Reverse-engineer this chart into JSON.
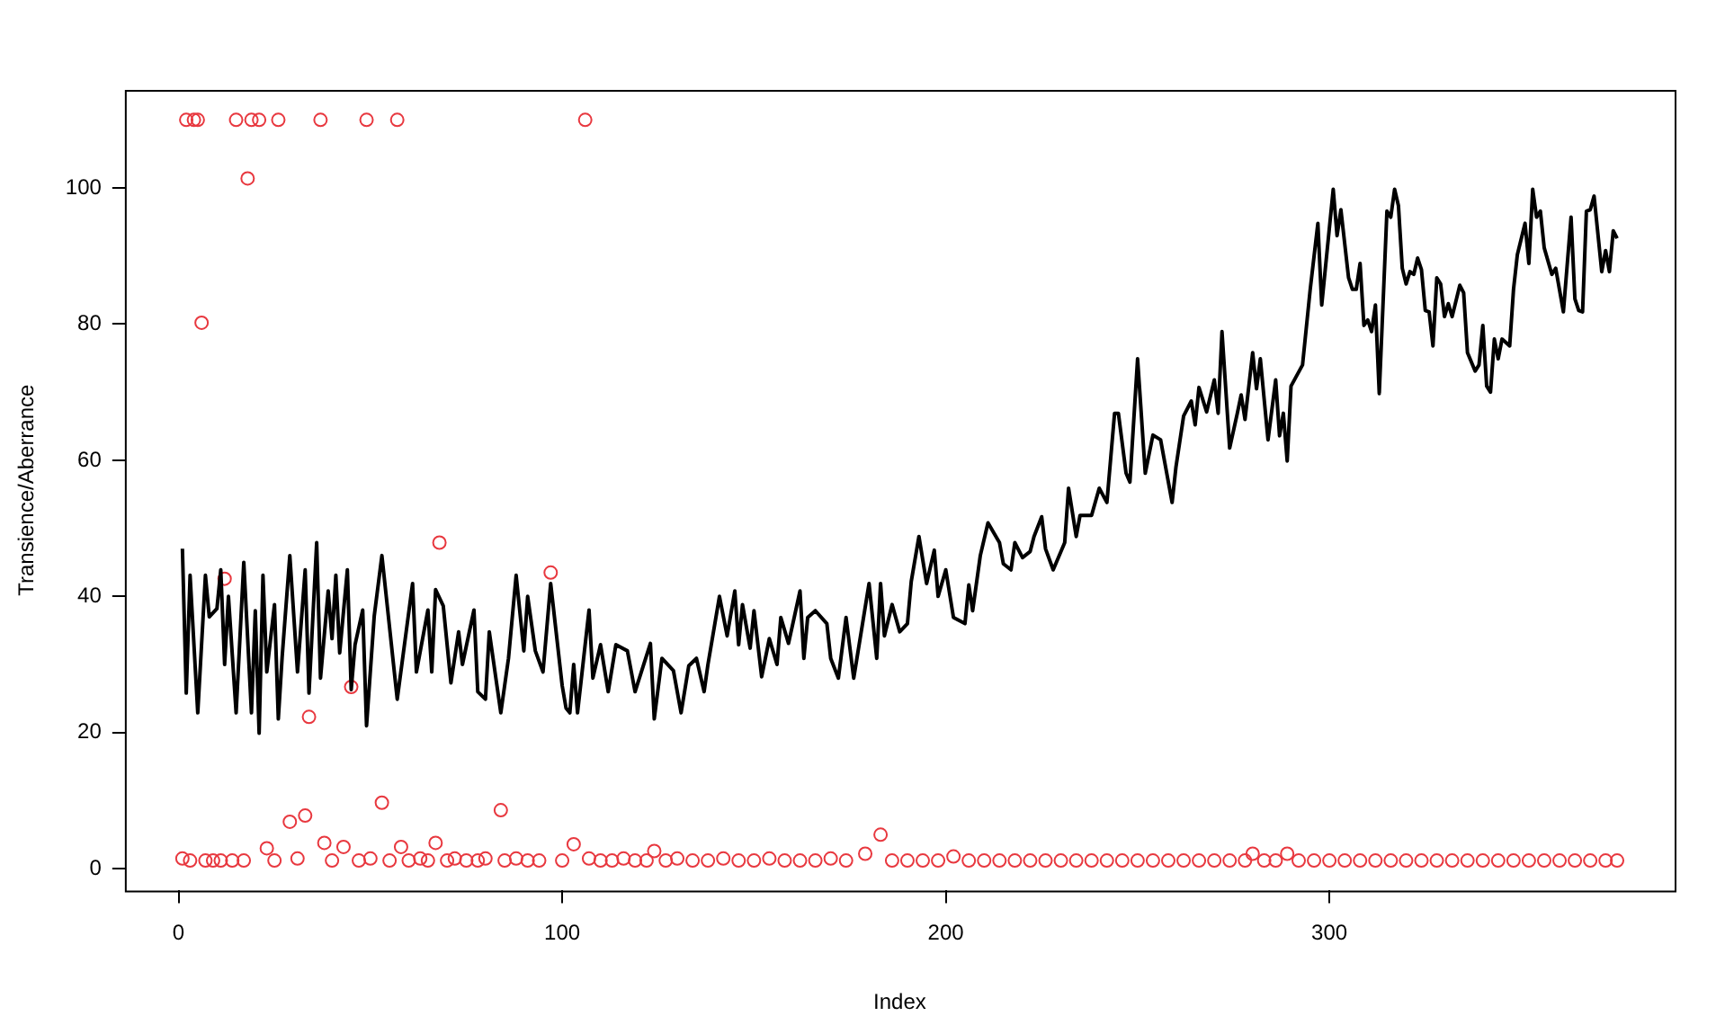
{
  "chart_data": {
    "type": "line",
    "xlabel": "Index",
    "ylabel": "Transience/Aberrance",
    "xlim": [
      -14,
      390
    ],
    "ylim": [
      -3.2,
      114.4
    ],
    "xticks": [
      0,
      100,
      200,
      300
    ],
    "yticks": [
      0,
      20,
      40,
      60,
      80,
      100
    ],
    "series": [
      {
        "color": "#000000",
        "marker": "none",
        "line_style": "solid",
        "x": [
          1,
          2,
          3,
          5,
          7,
          8,
          10,
          11,
          12,
          13,
          15,
          17,
          19,
          20,
          21,
          22,
          23,
          25,
          26,
          27,
          29,
          31,
          33,
          34,
          36,
          37,
          39,
          40,
          41,
          42,
          44,
          45,
          46,
          48,
          49,
          51,
          53,
          57,
          61,
          62,
          65,
          66,
          67,
          69,
          71,
          73,
          74,
          77,
          78,
          80,
          81,
          84,
          86,
          88,
          90,
          91,
          93,
          95,
          97,
          100,
          101,
          102,
          103,
          104,
          107,
          108,
          110,
          112,
          114,
          117,
          119,
          123,
          124,
          126,
          129,
          131,
          133,
          135,
          137,
          138,
          141,
          143,
          145,
          146,
          147,
          149,
          150,
          152,
          154,
          156,
          157,
          159,
          162,
          163,
          164,
          166,
          169,
          170,
          172,
          174,
          176,
          180,
          182,
          183,
          184,
          186,
          188,
          190,
          191,
          193,
          195,
          197,
          198,
          200,
          202,
          205,
          206,
          207,
          209,
          211,
          214,
          215,
          217,
          218,
          220,
          222,
          223,
          225,
          226,
          228,
          231,
          232,
          234,
          235,
          238,
          240,
          242,
          244,
          245,
          247,
          248,
          250,
          252,
          254,
          256,
          259,
          260,
          262,
          264,
          265,
          266,
          268,
          270,
          271,
          272,
          274,
          276,
          277,
          278,
          280,
          281,
          282,
          284,
          286,
          287,
          288,
          289,
          290,
          293,
          295,
          297,
          298,
          301,
          302,
          303,
          305,
          306,
          307,
          308,
          309,
          310,
          311,
          312,
          313,
          315,
          316,
          317,
          318,
          319,
          320,
          321,
          322,
          323,
          324,
          325,
          326,
          327,
          328,
          329,
          330,
          331,
          332,
          334,
          335,
          336,
          338,
          339,
          340,
          341,
          342,
          343,
          344,
          345,
          347,
          348,
          349,
          351,
          352,
          353,
          354,
          355,
          356,
          358,
          359,
          361,
          363,
          364,
          365,
          366,
          367,
          368,
          369,
          371,
          372,
          373,
          374,
          375
        ],
        "values": [
          47.0,
          25.8,
          43.1,
          22.9,
          43.1,
          37.0,
          38.2,
          43.9,
          30.0,
          40.0,
          22.9,
          45.0,
          22.9,
          37.9,
          19.9,
          43.1,
          28.9,
          38.8,
          22.0,
          31.1,
          46.0,
          28.9,
          43.9,
          25.8,
          47.9,
          28.0,
          40.8,
          33.8,
          43.1,
          31.7,
          43.9,
          26.3,
          32.9,
          38.0,
          21.0,
          37.1,
          46.0,
          24.9,
          41.9,
          28.9,
          38.0,
          28.9,
          41.0,
          38.6,
          27.3,
          34.8,
          30.0,
          38.0,
          26.0,
          24.9,
          34.8,
          22.9,
          30.9,
          43.1,
          32.0,
          40.0,
          32.0,
          28.9,
          41.9,
          26.9,
          23.6,
          22.9,
          30.0,
          22.9,
          38.0,
          28.0,
          32.9,
          26.0,
          32.9,
          32.0,
          26.0,
          33.1,
          22.0,
          30.9,
          29.1,
          22.9,
          29.8,
          30.9,
          26.0,
          30.0,
          40.0,
          34.2,
          40.8,
          32.9,
          38.8,
          32.4,
          37.9,
          28.2,
          33.8,
          30.0,
          36.9,
          33.1,
          40.8,
          30.9,
          36.9,
          37.9,
          36.0,
          30.9,
          28.0,
          36.9,
          28.0,
          41.9,
          30.9,
          41.9,
          34.2,
          38.8,
          34.8,
          36.0,
          42.2,
          48.8,
          41.9,
          46.8,
          40.0,
          43.9,
          36.9,
          36.0,
          41.7,
          37.9,
          46.0,
          50.8,
          47.9,
          44.8,
          43.9,
          47.9,
          45.7,
          46.6,
          48.8,
          51.7,
          47.0,
          43.9,
          47.9,
          55.9,
          48.8,
          51.9,
          51.9,
          55.9,
          53.8,
          66.9,
          66.9,
          58.1,
          56.8,
          74.9,
          58.1,
          63.7,
          63.0,
          53.8,
          59.0,
          66.5,
          68.7,
          65.2,
          70.7,
          67.1,
          71.8,
          66.9,
          78.9,
          61.8,
          66.9,
          69.6,
          66.0,
          75.8,
          70.5,
          74.9,
          63.0,
          71.8,
          63.6,
          66.9,
          59.9,
          70.9,
          74.0,
          85.1,
          94.8,
          82.8,
          99.8,
          93.0,
          96.8,
          86.8,
          85.1,
          85.1,
          88.9,
          79.8,
          80.6,
          78.9,
          82.8,
          69.8,
          96.6,
          95.7,
          99.8,
          97.4,
          88.2,
          85.9,
          87.7,
          87.3,
          89.7,
          88.0,
          82.0,
          81.8,
          76.8,
          86.8,
          85.9,
          81.1,
          83.0,
          81.1,
          85.7,
          84.6,
          75.8,
          73.1,
          74.0,
          79.8,
          70.9,
          70.0,
          77.8,
          74.9,
          77.8,
          76.8,
          85.1,
          90.2,
          94.8,
          88.9,
          99.8,
          95.7,
          96.6,
          91.2,
          87.3,
          88.2,
          81.8,
          95.7,
          83.7,
          82.0,
          81.8,
          96.6,
          96.8,
          98.8,
          87.7,
          90.8,
          87.7,
          93.7,
          92.6
        ]
      },
      {
        "type": "scatter",
        "color": "#e8383f",
        "marker": "circle",
        "x": [
          1,
          2,
          3,
          4,
          5,
          6,
          7,
          9,
          11,
          12,
          14,
          15,
          17,
          18,
          19,
          21,
          23,
          25,
          26,
          29,
          31,
          33,
          34,
          37,
          38,
          40,
          43,
          45,
          47,
          49,
          50,
          53,
          55,
          57,
          58,
          60,
          63,
          65,
          67,
          68,
          70,
          72,
          75,
          78,
          80,
          84,
          85,
          88,
          91,
          94,
          97,
          100,
          103,
          106,
          107,
          110,
          113,
          116,
          119,
          122,
          124,
          127,
          130,
          134,
          138,
          142,
          146,
          150,
          154,
          158,
          162,
          166,
          170,
          174,
          179,
          183,
          186,
          190,
          194,
          198,
          202,
          206,
          210,
          214,
          218,
          222,
          226,
          230,
          234,
          238,
          242,
          246,
          250,
          254,
          258,
          262,
          266,
          270,
          274,
          278,
          280,
          283,
          286,
          289,
          292,
          296,
          300,
          304,
          308,
          312,
          316,
          320,
          324,
          328,
          332,
          336,
          340,
          344,
          348,
          352,
          356,
          360,
          364,
          368,
          372,
          375
        ],
        "values": [
          1.5,
          110,
          1.2,
          110,
          110,
          80.2,
          1.2,
          1.2,
          1.2,
          42.6,
          1.2,
          110,
          1.2,
          101.4,
          110,
          110,
          3.0,
          1.2,
          110,
          6.9,
          1.5,
          7.8,
          22.3,
          110,
          3.8,
          1.2,
          3.2,
          26.7,
          1.2,
          110,
          1.5,
          9.7,
          1.2,
          110,
          3.2,
          1.2,
          1.5,
          1.2,
          3.8,
          47.9,
          1.2,
          1.5,
          1.2,
          1.2,
          1.5,
          8.6,
          1.2,
          1.5,
          1.2,
          1.2,
          43.5,
          1.2,
          3.6,
          110,
          1.5,
          1.2,
          1.2,
          1.5,
          1.2,
          1.2,
          2.6,
          1.2,
          1.5,
          1.2,
          1.2,
          1.5,
          1.2,
          1.2,
          1.5,
          1.2,
          1.2,
          1.2,
          1.5,
          1.2,
          2.2,
          5.0,
          1.2,
          1.2,
          1.2,
          1.2,
          1.8,
          1.2,
          1.2,
          1.2,
          1.2,
          1.2,
          1.2,
          1.2,
          1.2,
          1.2,
          1.2,
          1.2,
          1.2,
          1.2,
          1.2,
          1.2,
          1.2,
          1.2,
          1.2,
          1.2,
          2.2,
          1.2,
          1.2,
          2.2,
          1.2,
          1.2,
          1.2,
          1.2,
          1.2,
          1.2,
          1.2,
          1.2,
          1.2,
          1.2,
          1.2,
          1.2,
          1.2,
          1.2,
          1.2,
          1.2,
          1.2,
          1.2,
          1.2,
          1.2,
          1.2,
          1.2
        ]
      }
    ]
  }
}
